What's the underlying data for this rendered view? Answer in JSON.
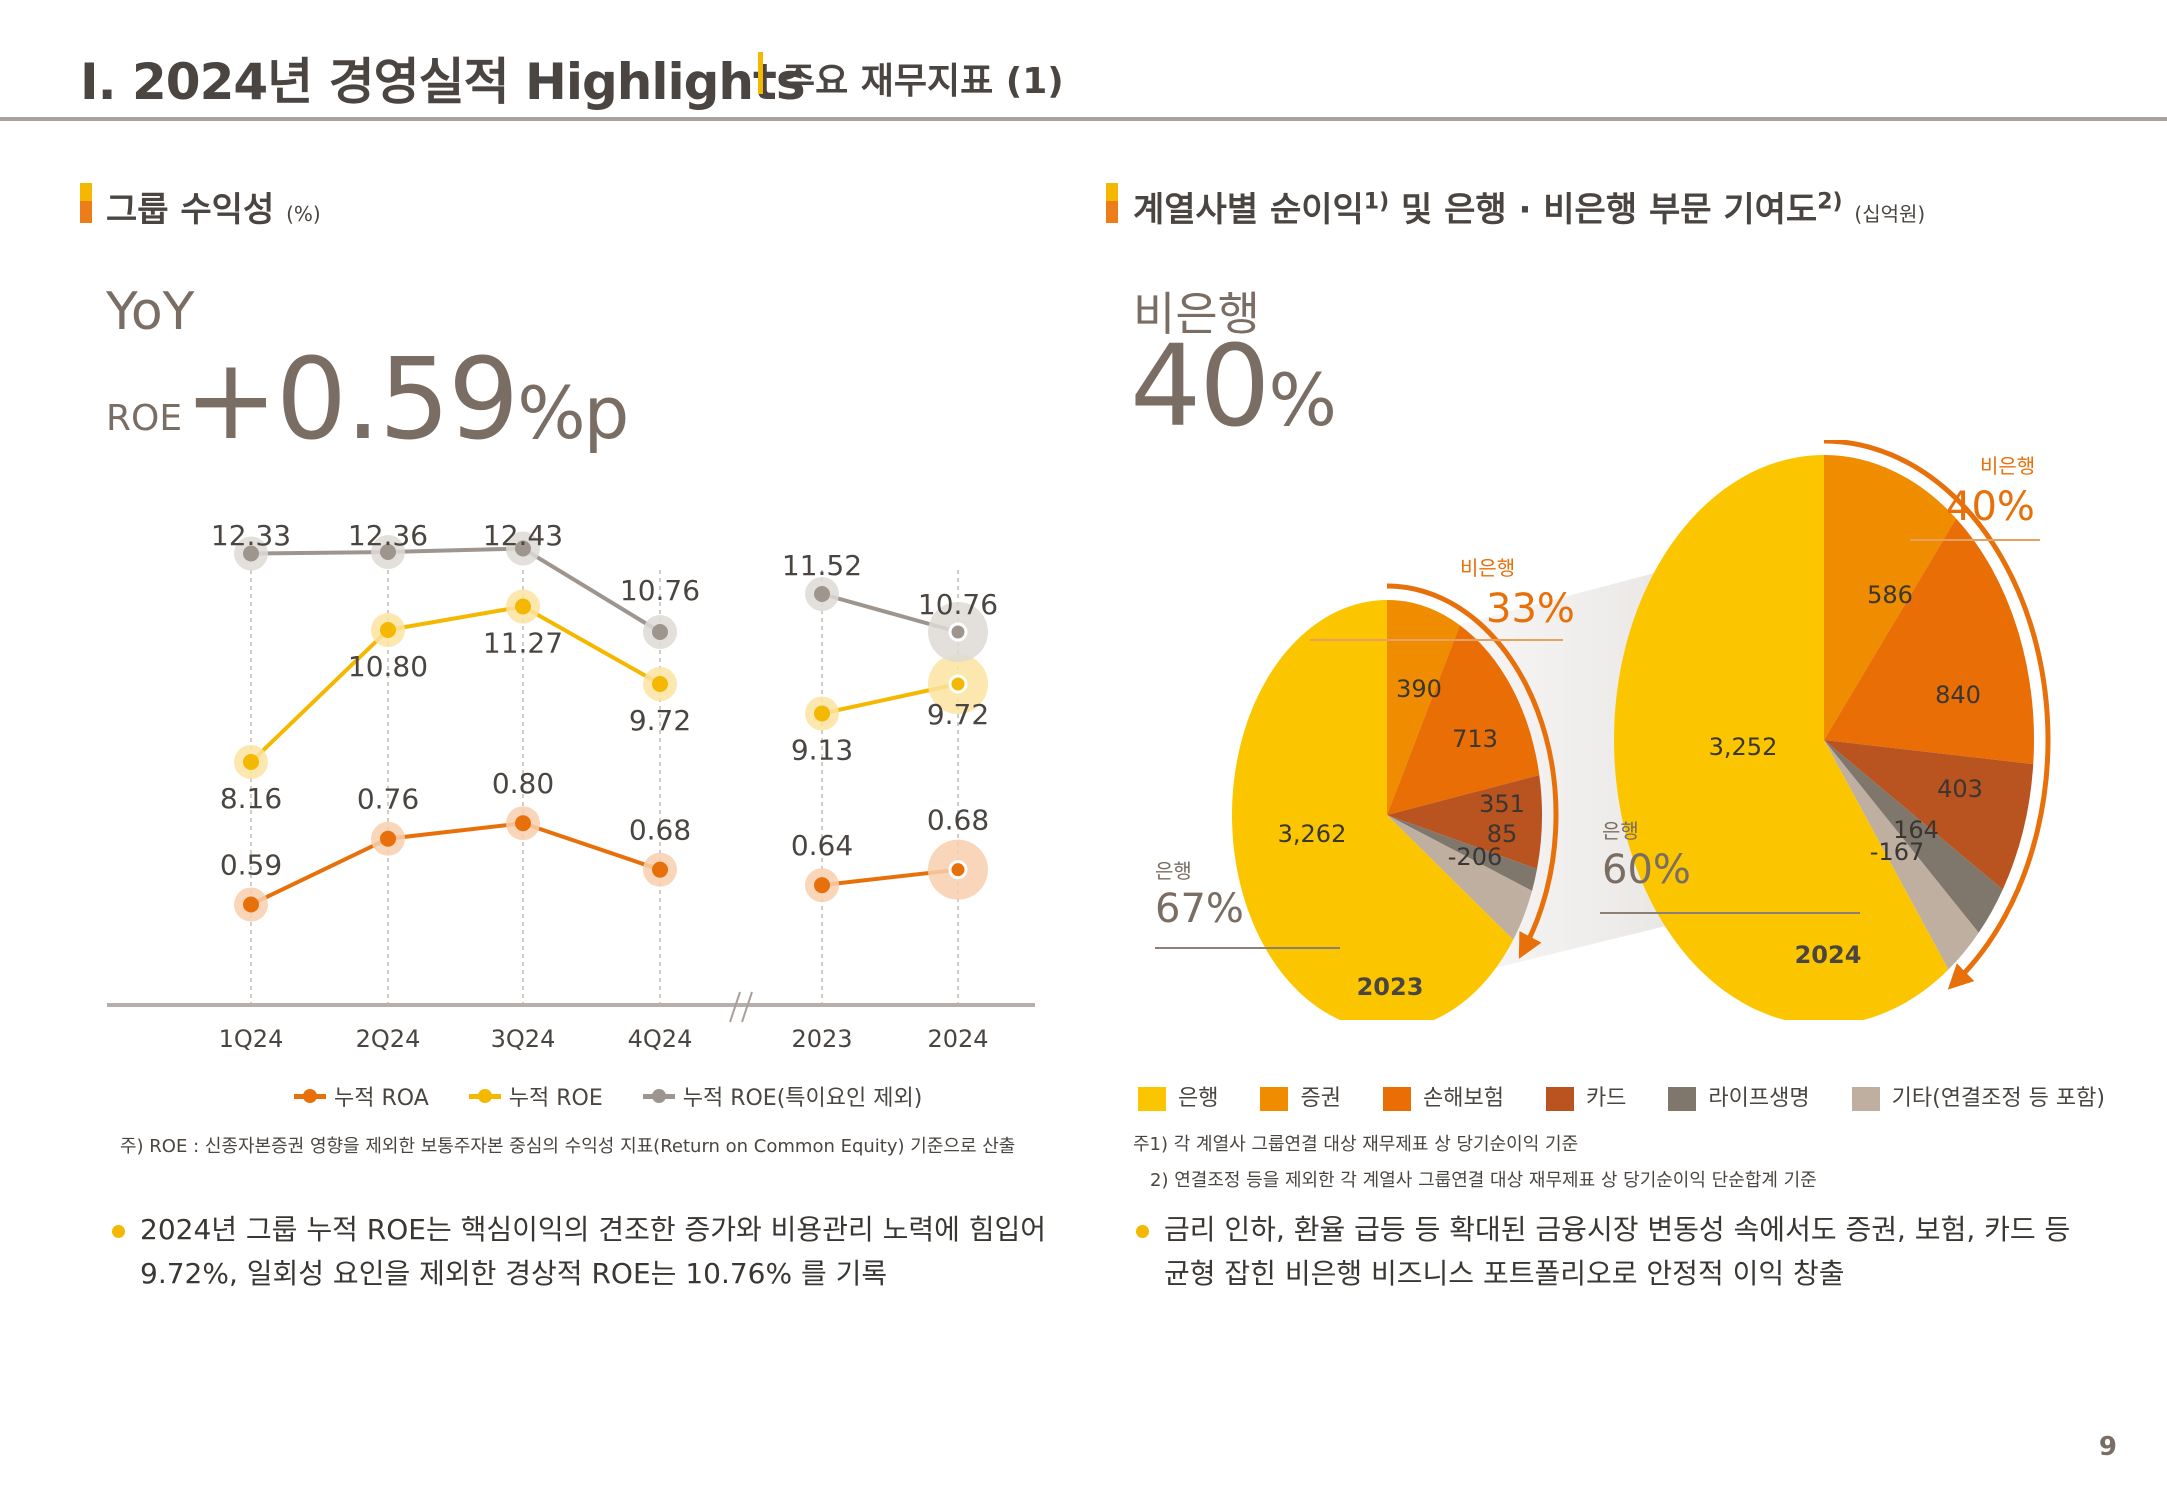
{
  "header": {
    "title": "I. 2024년 경영실적 Highlights",
    "subtitle": "주요 재무지표 (1)"
  },
  "left_section": {
    "title": "그룹 수익성",
    "unit": "(%)",
    "kpi_label": "YoY",
    "kpi_metric": "ROE",
    "kpi_value": "+0.59",
    "kpi_unit": "%p",
    "note": "주) ROE : 신종자본증권 영향을 제외한 보통주자본 중심의 수익성 지표(Return on Common Equity) 기준으로 산출",
    "bullet": [
      "2024년 그룹 누적 ROE는 핵심이익의 견조한 증가와 비용관리 노력에 힘입어",
      "9.72%, 일회성 요인을 제외한 경상적 ROE는 10.76% 를 기록"
    ]
  },
  "right_section": {
    "title": "계열사별 순이익",
    "title_sup1": "1)",
    "title_mid": " 및 은행 · 비은행 부문 기여도",
    "title_sup2": "2)",
    "unit": "(십억원)",
    "kpi_label": "비은행",
    "kpi_value": "40",
    "kpi_unit": "%",
    "notes": [
      "주1) 각 계열사 그룹연결 대상 재무제표 상 당기순이익 기준",
      "2) 연결조정 등을 제외한 각 계열사 그룹연결 대상 재무제표 상 당기순이익 단순합계 기준"
    ],
    "bullet": [
      "금리 인하, 환율 급등 등 확대된 금융시장 변동성 속에서도 증권, 보험, 카드 등",
      "균형 잡힌 비은행 비즈니스 포트폴리오로 안정적 이익 창출"
    ]
  },
  "page_number": "9",
  "chart_data": [
    {
      "type": "line",
      "title": "그룹 수익성 (%)",
      "categories": [
        "1Q24",
        "2Q24",
        "3Q24",
        "4Q24",
        "2023",
        "2024"
      ],
      "axis_break_after": "4Q24",
      "series": [
        {
          "name": "누적 ROA",
          "color": "#e8700a",
          "values": [
            0.59,
            0.76,
            0.8,
            0.68,
            0.64,
            0.68
          ]
        },
        {
          "name": "누적 ROE",
          "color": "#f5b800",
          "values": [
            8.16,
            10.8,
            11.27,
            9.72,
            9.13,
            9.72
          ]
        },
        {
          "name": "누적 ROE(특이요인 제외)",
          "color": "#9e968e",
          "values": [
            12.33,
            12.36,
            12.43,
            10.76,
            11.52,
            10.76
          ]
        }
      ],
      "labels": {
        "ROA": [
          "0.59",
          "0.76",
          "0.80",
          "0.68",
          "0.64",
          "0.68"
        ],
        "ROE": [
          "8.16",
          "10.80",
          "11.27",
          "9.72",
          "9.13",
          "9.72"
        ],
        "ROE_ex": [
          "12.33",
          "12.36",
          "12.43",
          "10.76",
          "11.52",
          "10.76"
        ]
      },
      "legend": [
        "누적 ROA",
        "누적 ROE",
        "누적 ROE(특이요인 제외)"
      ],
      "legend_position": "bottom"
    },
    {
      "type": "pie",
      "title": "계열사별 순이익 (십억원)",
      "legend": [
        {
          "name": "은행",
          "color": "#fbc600"
        },
        {
          "name": "증권",
          "color": "#f08c00"
        },
        {
          "name": "손해보험",
          "color": "#e86e05"
        },
        {
          "name": "카드",
          "color": "#b9531f"
        },
        {
          "name": "라이프생명",
          "color": "#7f766c"
        },
        {
          "name": "기타(연결조정 등 포함)",
          "color": "#bfafa0"
        }
      ],
      "pies": [
        {
          "year": "2023",
          "values": [
            3262,
            390,
            713,
            351,
            85,
            -206
          ],
          "value_labels": [
            "3,262",
            "390",
            "713",
            "351",
            "85",
            "-206"
          ],
          "bank_label": "은행",
          "bank_share": "67%",
          "nonbank_label": "비은행",
          "nonbank_share": "33%"
        },
        {
          "year": "2024",
          "values": [
            3252,
            586,
            840,
            403,
            164,
            -167
          ],
          "value_labels": [
            "3,252",
            "586",
            "840",
            "403",
            "164",
            "-167"
          ],
          "bank_label": "은행",
          "bank_share": "60%",
          "nonbank_label": "비은행",
          "nonbank_share": "40%"
        }
      ]
    }
  ]
}
